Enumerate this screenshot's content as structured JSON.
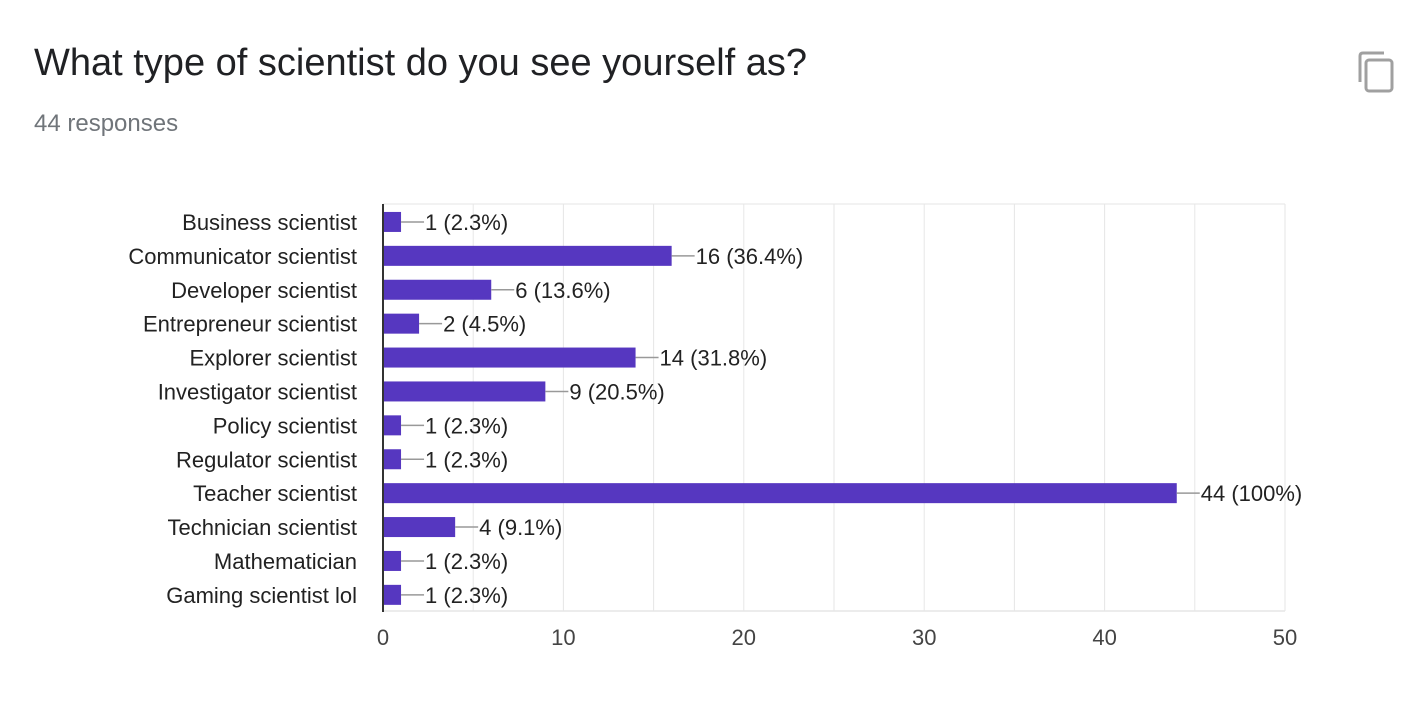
{
  "question": {
    "title": "What type of scientist do you see yourself as?",
    "responses": "44 responses"
  },
  "icons": {
    "copy": "copy-icon"
  },
  "colors": {
    "bar": "#5637c0",
    "grid": "#e6e6e6",
    "axis": "#333333",
    "leader": "#999999"
  },
  "chart_data": {
    "type": "bar",
    "orientation": "horizontal",
    "categories": [
      "Business scientist",
      "Communicator scientist",
      "Developer scientist",
      "Entrepreneur scientist",
      "Explorer scientist",
      "Investigator scientist",
      "Policy scientist",
      "Regulator scientist",
      "Teacher scientist",
      "Technician scientist",
      "Mathematician",
      "Gaming scientist lol"
    ],
    "values": [
      1,
      16,
      6,
      2,
      14,
      9,
      1,
      1,
      44,
      4,
      1,
      1
    ],
    "data_labels": [
      "1 (2.3%)",
      "16 (36.4%)",
      "6 (13.6%)",
      "2 (4.5%)",
      "14 (31.8%)",
      "9 (20.5%)",
      "1 (2.3%)",
      "1 (2.3%)",
      "44 (100%)",
      "4 (9.1%)",
      "1 (2.3%)",
      "1 (2.3%)"
    ],
    "xlim": [
      0,
      50
    ],
    "xticks": [
      0,
      10,
      20,
      30,
      40,
      50
    ],
    "grid": true
  }
}
